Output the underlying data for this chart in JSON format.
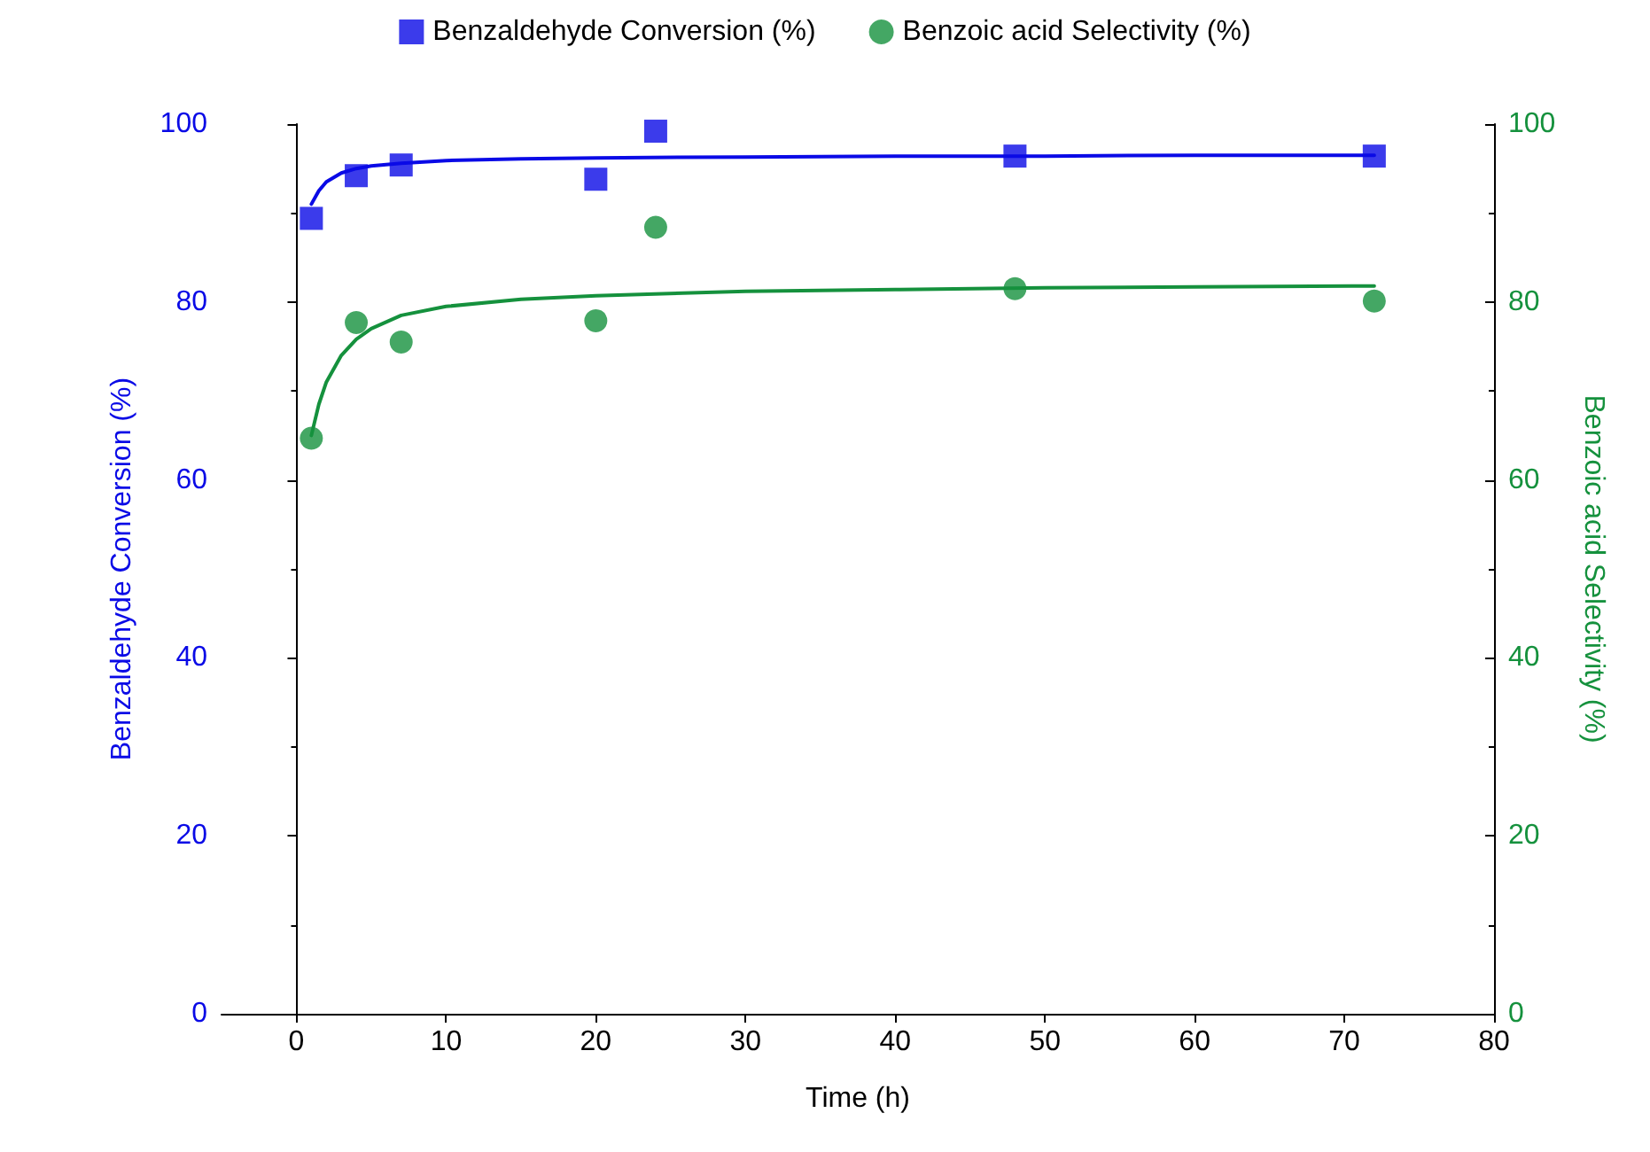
{
  "chart_data": {
    "type": "scatter",
    "xlabel": "Time (h)",
    "ylabel": "Benzaldehyde Conversion (%)",
    "y2label": "Benzoic acid Selectivity (%)",
    "xlim": [
      -5,
      80
    ],
    "xticks": [
      0,
      10,
      20,
      30,
      40,
      50,
      60,
      70,
      80
    ],
    "ylim": [
      0,
      100
    ],
    "yticks": [
      0,
      20,
      40,
      60,
      80,
      100
    ],
    "y2lim": [
      0,
      100
    ],
    "y2ticks": [
      0,
      20,
      40,
      60,
      80,
      100
    ],
    "legend": "top",
    "series": [
      {
        "name": "Benzaldehyde Conversion (%)",
        "marker": "square",
        "color": "#0a0ae6",
        "x": [
          1,
          4,
          7,
          20,
          24,
          48,
          72
        ],
        "values": [
          89.4,
          94.2,
          95.4,
          93.8,
          99.2,
          96.4,
          96.4
        ]
      },
      {
        "name": "Benzoic acid Selectivity (%)",
        "marker": "circle",
        "color": "#15913d",
        "axis": "y2",
        "x": [
          1,
          4,
          7,
          20,
          24,
          48,
          72
        ],
        "values": [
          64.7,
          77.7,
          75.5,
          77.9,
          88.4,
          81.5,
          80.1
        ]
      },
      {
        "type": "line",
        "marker": "none",
        "color": "#0a0ae6",
        "x": [
          1,
          1.5,
          2,
          3,
          4,
          5,
          7,
          10,
          15,
          20,
          30,
          40,
          50,
          60,
          72
        ],
        "values": [
          91,
          92.5,
          93.5,
          94.5,
          95,
          95.3,
          95.6,
          95.9,
          96.1,
          96.2,
          96.3,
          96.4,
          96.4,
          96.5,
          96.5
        ]
      },
      {
        "type": "line",
        "marker": "none",
        "color": "#15913d",
        "axis": "y2",
        "x": [
          1,
          1.5,
          2,
          3,
          4,
          5,
          7,
          10,
          15,
          20,
          30,
          40,
          50,
          60,
          72
        ],
        "values": [
          65,
          68.5,
          71,
          74,
          75.8,
          77,
          78.5,
          79.5,
          80.3,
          80.7,
          81.2,
          81.4,
          81.6,
          81.7,
          81.8
        ]
      }
    ]
  }
}
